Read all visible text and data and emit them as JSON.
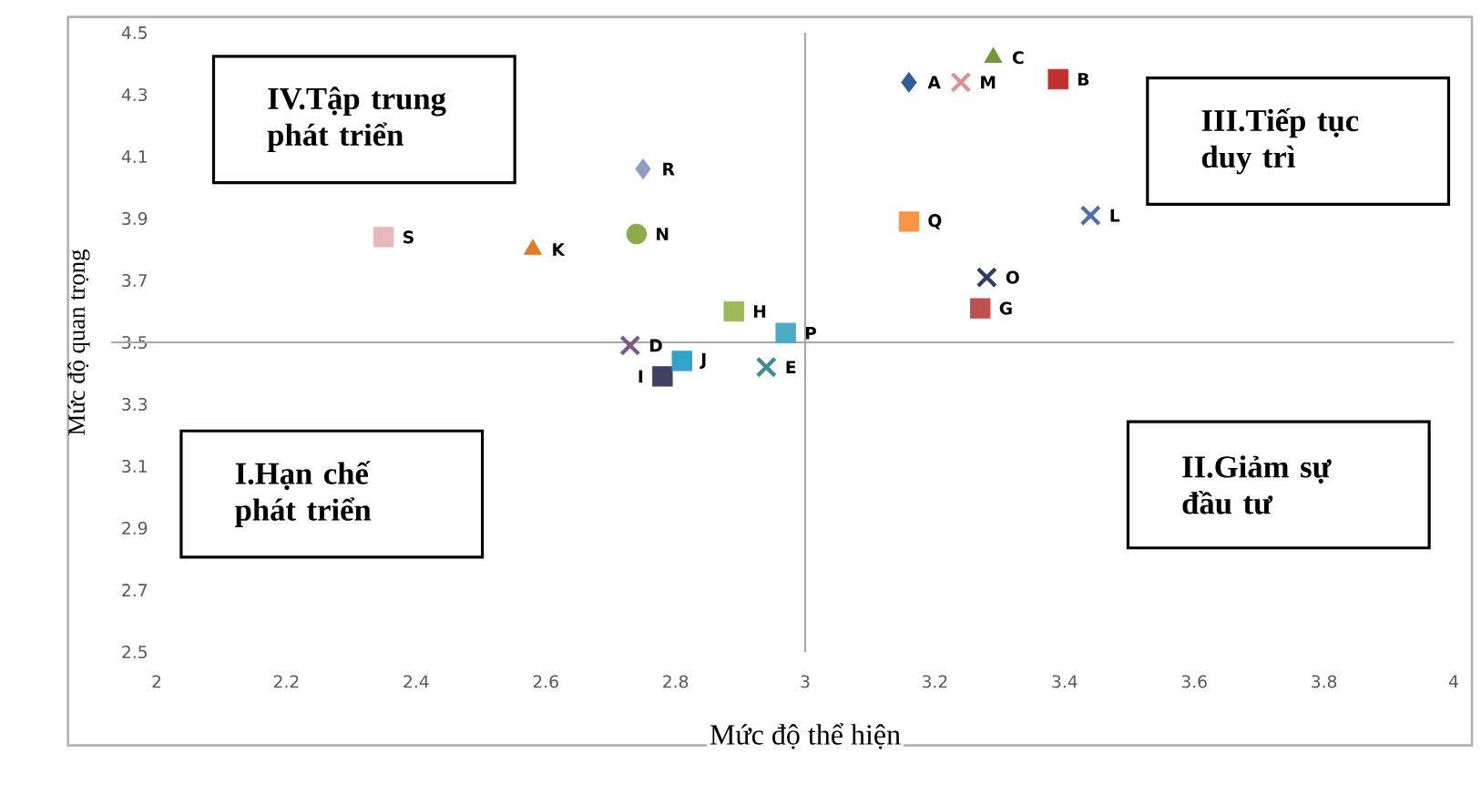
{
  "chart_data": {
    "type": "scatter",
    "xlabel": "Mức độ thể hiện",
    "ylabel": "Mức độ quan trọng",
    "xlim": [
      2,
      4
    ],
    "xticks": [
      2,
      2.2,
      2.4,
      2.6,
      2.8,
      3,
      3.2,
      3.4,
      3.6,
      3.8,
      4
    ],
    "ylim": [
      2.5,
      4.5
    ],
    "yticks": [
      2.5,
      2.7,
      2.9,
      3.1,
      3.3,
      3.5,
      3.7,
      3.9,
      4.1,
      4.3,
      4.5
    ],
    "grid": false,
    "ref_lines": [
      {
        "axis": "x",
        "value": 3,
        "color": "#a6a6a6"
      },
      {
        "axis": "y",
        "value": 3.5,
        "color": "#a6a6a6"
      }
    ],
    "annotations": [
      "I.Hạn chế phát triển",
      "II.Giảm sự đầu tư",
      "III.Tiếp tục duy trì",
      "IV.Tập trung phát triển"
    ],
    "series": [
      {
        "name": "A",
        "color": "#2e5f9a",
        "marker": "diamond",
        "x": [
          3.16
        ],
        "values": [
          4.34
        ]
      },
      {
        "name": "B",
        "color": "#c0302c",
        "marker": "square",
        "x": [
          3.39
        ],
        "values": [
          4.35
        ]
      },
      {
        "name": "C",
        "color": "#6e9a3a",
        "marker": "triangle",
        "x": [
          3.29
        ],
        "values": [
          4.42
        ]
      },
      {
        "name": "D",
        "color": "#7a5a8a",
        "marker": "cross",
        "x": [
          2.73
        ],
        "values": [
          3.49
        ]
      },
      {
        "name": "E",
        "color": "#3f8a95",
        "marker": "cross",
        "x": [
          2.94
        ],
        "values": [
          3.42
        ]
      },
      {
        "name": "G",
        "color": "#c0504d",
        "marker": "square",
        "x": [
          3.27
        ],
        "values": [
          3.61
        ]
      },
      {
        "name": "H",
        "color": "#9bbb59",
        "marker": "square",
        "x": [
          2.89
        ],
        "values": [
          3.6
        ]
      },
      {
        "name": "I",
        "color": "#404060",
        "marker": "square",
        "x": [
          2.78
        ],
        "values": [
          3.39
        ]
      },
      {
        "name": "J",
        "color": "#31a4c9",
        "marker": "square",
        "x": [
          2.81
        ],
        "values": [
          3.44
        ]
      },
      {
        "name": "K",
        "color": "#e07b28",
        "marker": "triangle",
        "x": [
          2.58
        ],
        "values": [
          3.8
        ]
      },
      {
        "name": "L",
        "color": "#4f6fa8",
        "marker": "cross",
        "x": [
          3.44
        ],
        "values": [
          3.91
        ]
      },
      {
        "name": "M",
        "color": "#d99594",
        "marker": "cross",
        "x": [
          3.24
        ],
        "values": [
          4.34
        ]
      },
      {
        "name": "N",
        "color": "#8aac4a",
        "marker": "circle",
        "x": [
          2.74
        ],
        "values": [
          3.85
        ]
      },
      {
        "name": "O",
        "color": "#2c3e66",
        "marker": "cross",
        "x": [
          3.28
        ],
        "values": [
          3.71
        ]
      },
      {
        "name": "P",
        "color": "#4bacc6",
        "marker": "square",
        "x": [
          2.97
        ],
        "values": [
          3.53
        ]
      },
      {
        "name": "Q",
        "color": "#f79646",
        "marker": "square",
        "x": [
          3.16
        ],
        "values": [
          3.89
        ]
      },
      {
        "name": "R",
        "color": "#8d9dc4",
        "marker": "diamond",
        "x": [
          2.75
        ],
        "values": [
          4.06
        ]
      },
      {
        "name": "S",
        "color": "#e6b9b8",
        "marker": "square",
        "x": [
          2.35
        ],
        "values": [
          3.84
        ]
      }
    ]
  }
}
